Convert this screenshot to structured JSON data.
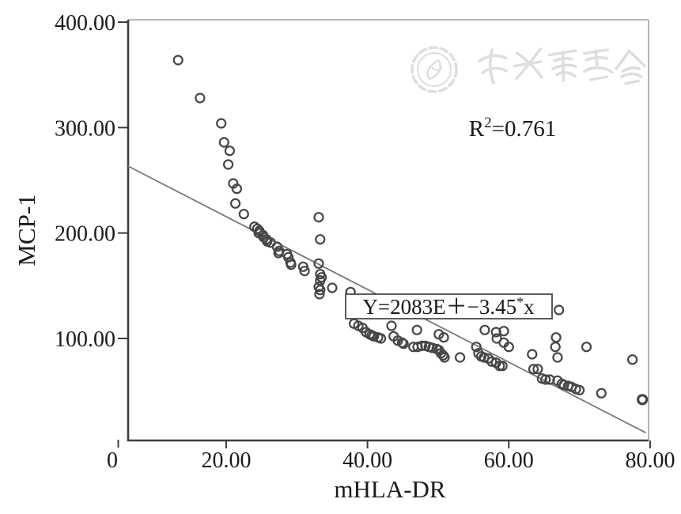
{
  "figure": {
    "watermark": {
      "text": "中华医学会",
      "logo": "cma-emblem-icon"
    },
    "colors": {
      "axis": "#3d3d3d",
      "frame": "#a2a2a2",
      "point_stroke": "#464646",
      "regression_line": "#787878",
      "text": "#1a1a1a",
      "watermark": "#dddddd"
    }
  },
  "chart_data": {
    "type": "scatter",
    "title": "",
    "xlabel": "mHLA-DR",
    "ylabel": "MCP-1",
    "xlim": [
      0,
      80
    ],
    "ylim": [
      0,
      400
    ],
    "grid": false,
    "legend": "none",
    "marker": "open-circle",
    "x_ticks": [
      {
        "label": "0",
        "value": 0,
        "at_origin": true
      },
      {
        "label": "20.00",
        "value": 20
      },
      {
        "label": "40.00",
        "value": 40
      },
      {
        "label": "60.00",
        "value": 60
      },
      {
        "label": "80.00",
        "value": 80
      }
    ],
    "y_ticks": [
      {
        "label": "100.00",
        "value": 100
      },
      {
        "label": "200.00",
        "value": 200
      },
      {
        "label": "300.00",
        "value": 300
      },
      {
        "label": "400.00",
        "value": 400
      }
    ],
    "annotations": {
      "r_squared": {
        "base": "R",
        "sup": "2",
        "rest": "=0.761"
      },
      "equation": {
        "prefix": "Y=2083E＋−3.45",
        "sup": "*",
        "suffix": "x"
      }
    },
    "regression_line": {
      "x1": 6.1,
      "y1": 263.5,
      "x2": 79.4,
      "y2": 10.5
    },
    "points": [
      [
        13.2,
        364
      ],
      [
        16.3,
        328
      ],
      [
        19.3,
        304
      ],
      [
        19.7,
        286
      ],
      [
        20.5,
        278
      ],
      [
        20.3,
        265
      ],
      [
        21.0,
        247
      ],
      [
        21.5,
        242
      ],
      [
        21.3,
        228
      ],
      [
        22.5,
        218
      ],
      [
        24.0,
        206
      ],
      [
        24.4,
        204
      ],
      [
        24.7,
        202
      ],
      [
        24.6,
        200
      ],
      [
        25.2,
        198
      ],
      [
        25.3,
        196
      ],
      [
        25.7,
        194
      ],
      [
        25.8,
        192
      ],
      [
        26.3,
        191
      ],
      [
        27.2,
        187
      ],
      [
        27.5,
        183
      ],
      [
        27.4,
        181
      ],
      [
        28.6,
        180
      ],
      [
        28.8,
        177
      ],
      [
        29.1,
        172
      ],
      [
        29.2,
        170
      ],
      [
        30.9,
        168
      ],
      [
        31.1,
        164
      ],
      [
        33.1,
        215
      ],
      [
        33.3,
        194
      ],
      [
        33.1,
        171
      ],
      [
        33.3,
        161
      ],
      [
        33.5,
        158
      ],
      [
        33.3,
        155
      ],
      [
        33.1,
        149
      ],
      [
        33.3,
        146
      ],
      [
        33.2,
        142
      ],
      [
        35.0,
        148
      ],
      [
        37.6,
        144
      ],
      [
        38.1,
        114
      ],
      [
        38.7,
        112
      ],
      [
        39.3,
        110
      ],
      [
        39.8,
        106
      ],
      [
        40.3,
        104
      ],
      [
        40.6,
        103
      ],
      [
        40.9,
        102
      ],
      [
        41.5,
        101
      ],
      [
        41.9,
        100
      ],
      [
        43.4,
        112
      ],
      [
        43.7,
        102
      ],
      [
        44.3,
        98
      ],
      [
        44.9,
        96
      ],
      [
        45.1,
        95
      ],
      [
        47.0,
        108
      ],
      [
        46.5,
        92
      ],
      [
        47.1,
        92
      ],
      [
        47.7,
        93
      ],
      [
        48.2,
        93
      ],
      [
        48.7,
        92
      ],
      [
        49.2,
        91
      ],
      [
        49.8,
        90
      ],
      [
        50.1,
        89
      ],
      [
        50.4,
        86
      ],
      [
        50.7,
        84
      ],
      [
        50.9,
        82
      ],
      [
        50.1,
        104
      ],
      [
        50.8,
        101
      ],
      [
        53.1,
        82
      ],
      [
        55.4,
        92
      ],
      [
        55.7,
        86
      ],
      [
        56.1,
        83
      ],
      [
        56.5,
        82
      ],
      [
        57.1,
        81
      ],
      [
        57.6,
        78
      ],
      [
        58.2,
        77
      ],
      [
        58.7,
        74
      ],
      [
        59.1,
        74
      ],
      [
        67.1,
        127
      ],
      [
        56.6,
        108
      ],
      [
        58.2,
        106
      ],
      [
        59.3,
        107
      ],
      [
        58.3,
        100
      ],
      [
        59.3,
        96
      ],
      [
        60.0,
        92
      ],
      [
        63.3,
        85
      ],
      [
        63.5,
        71
      ],
      [
        66.7,
        101
      ],
      [
        66.6,
        92
      ],
      [
        66.9,
        82
      ],
      [
        71.0,
        92
      ],
      [
        77.5,
        80
      ],
      [
        64.1,
        71
      ],
      [
        64.7,
        62
      ],
      [
        65.2,
        61
      ],
      [
        65.8,
        61
      ],
      [
        66.9,
        60
      ],
      [
        67.5,
        57
      ],
      [
        67.8,
        56
      ],
      [
        68.4,
        55
      ],
      [
        68.9,
        54
      ],
      [
        69.5,
        52
      ],
      [
        70.0,
        51
      ],
      [
        73.1,
        48
      ],
      [
        78.9,
        42,
        1
      ]
    ]
  }
}
